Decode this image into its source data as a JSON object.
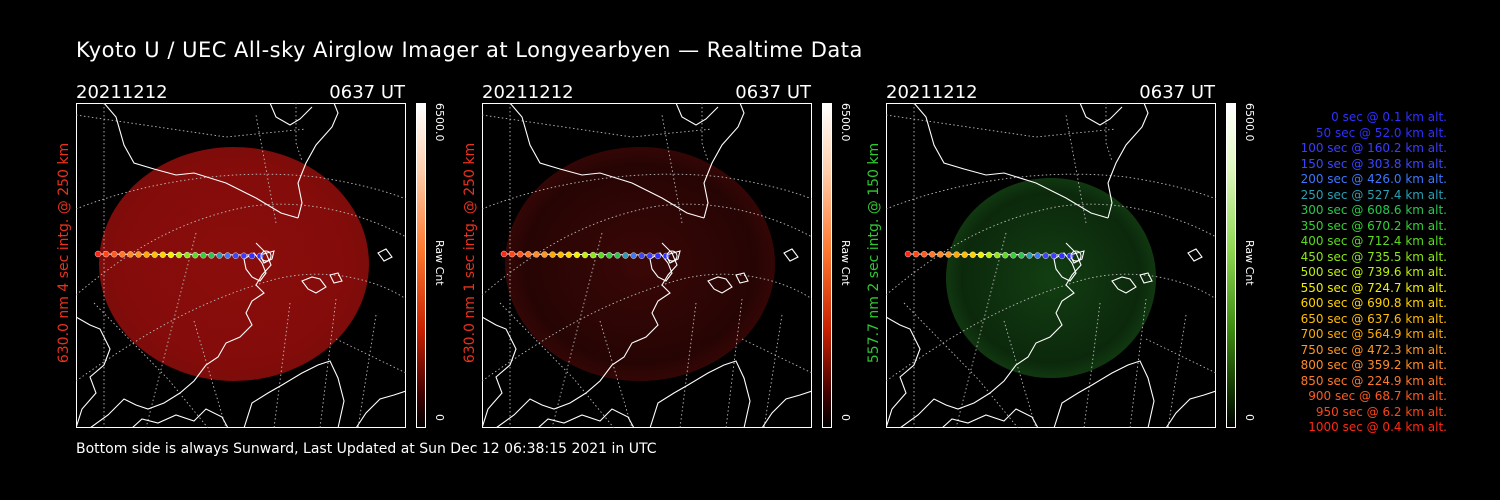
{
  "title": "Kyoto U / UEC All-sky Airglow Imager at Longyearbyen — Realtime Data",
  "footer": "Bottom side is always Sunward, Last Updated at Sun Dec 12 06:38:15 2021 in UTC",
  "panels": [
    {
      "date": "20211212",
      "time": "0637 UT",
      "ylabel": "630.0 nm 4 sec intg. @ 250 km",
      "label_color": "#e8321e",
      "cb_max": "6500.0",
      "cb_min": "0",
      "cb_unit": "Raw Cnt",
      "colormap": "red",
      "glow_color": "#8a0d0b",
      "glow_level": 0.65
    },
    {
      "date": "20211212",
      "time": "0637 UT",
      "ylabel": "630.0 nm 1 sec intg. @ 250 km",
      "label_color": "#e8321e",
      "cb_max": "6500.0",
      "cb_min": "0",
      "cb_unit": "Raw Cnt",
      "colormap": "red",
      "glow_color": "#3a0706",
      "glow_level": 0.35
    },
    {
      "date": "20211212",
      "time": "0637 UT",
      "ylabel": "557.7 nm 2 sec intg. @ 150 km",
      "label_color": "#2fc832",
      "cb_max": "6500.0",
      "cb_min": "0",
      "cb_unit": "Raw Cnt",
      "colormap": "green",
      "glow_color": "#123e12",
      "glow_level": 0.35
    }
  ],
  "legend": [
    {
      "text": "0 sec @    0.1 km alt.",
      "color": "#3030ff"
    },
    {
      "text": "50 sec @   52.0 km alt.",
      "color": "#3030ff"
    },
    {
      "text": "100 sec @  160.2 km alt.",
      "color": "#3c3cff"
    },
    {
      "text": "150 sec @  303.8 km alt.",
      "color": "#3c46ff"
    },
    {
      "text": "200 sec @  426.0 km alt.",
      "color": "#3c78ff"
    },
    {
      "text": "250 sec @  527.4 km alt.",
      "color": "#28a0b4"
    },
    {
      "text": "300 sec @  608.6 km alt.",
      "color": "#28c850"
    },
    {
      "text": "350 sec @  670.2 km alt.",
      "color": "#32d232"
    },
    {
      "text": "400 sec @  712.4 km alt.",
      "color": "#5adc1e"
    },
    {
      "text": "450 sec @  735.5 km alt.",
      "color": "#8ce614"
    },
    {
      "text": "500 sec @  739.6 km alt.",
      "color": "#bef00a"
    },
    {
      "text": "550 sec @  724.7 km alt.",
      "color": "#f0f000"
    },
    {
      "text": "600 sec @  690.8 km alt.",
      "color": "#ffd200"
    },
    {
      "text": "650 sec @  637.6 km alt.",
      "color": "#ffbe00"
    },
    {
      "text": "700 sec @  564.9 km alt.",
      "color": "#ffaa00"
    },
    {
      "text": "750 sec @  472.3 km alt.",
      "color": "#ff961e"
    },
    {
      "text": "800 sec @  359.2 km alt.",
      "color": "#ff8c28"
    },
    {
      "text": "850 sec @  224.9 km alt.",
      "color": "#ff7828"
    },
    {
      "text": "900 sec @   68.7 km alt.",
      "color": "#ff5a1e"
    },
    {
      "text": "950 sec @    6.2 km alt.",
      "color": "#ff4614"
    },
    {
      "text": "1000 sec @    0.4 km alt.",
      "color": "#ff2814"
    }
  ]
}
